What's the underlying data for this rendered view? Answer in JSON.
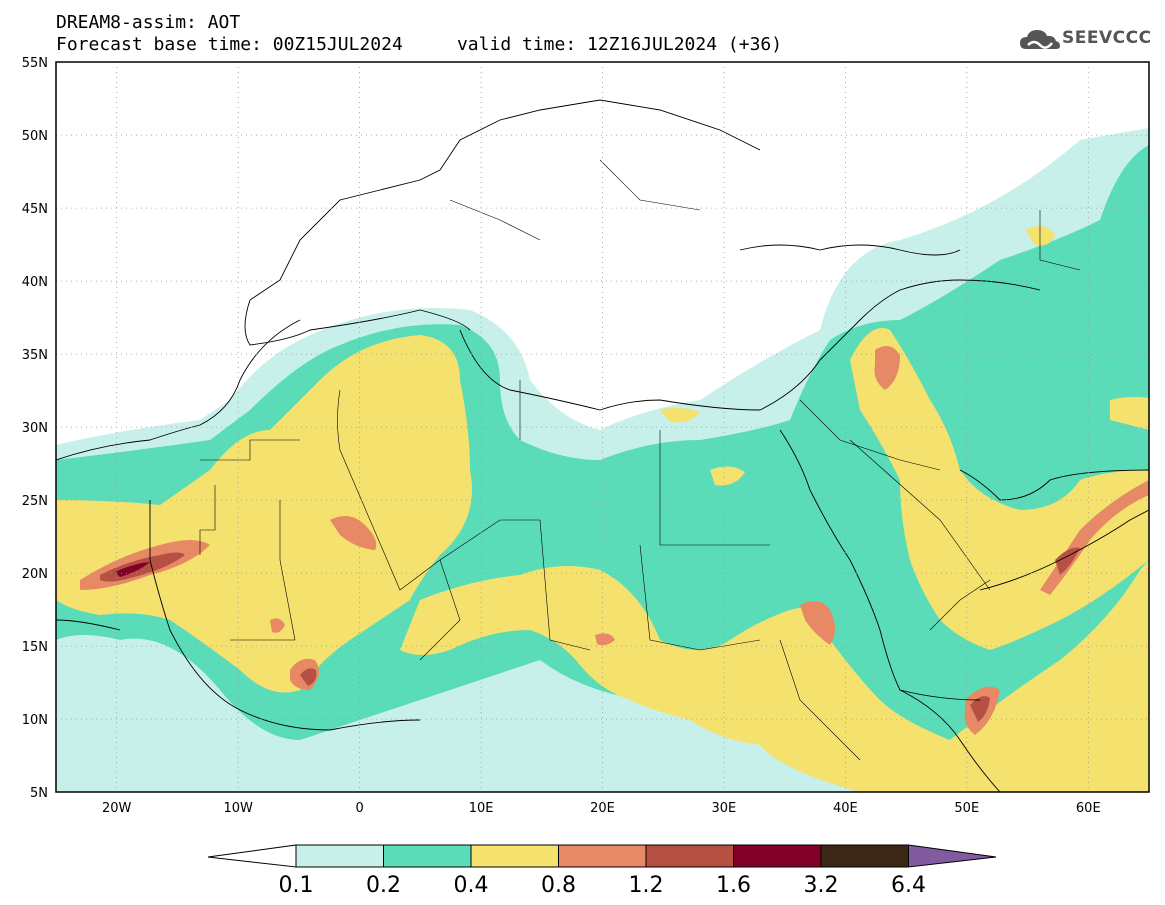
{
  "header": {
    "title_line1": "DREAM8-assim: AOT",
    "title_line2": "Forecast base time: 00Z15JUL2024     valid time: 12Z16JUL2024 (+36)"
  },
  "logo": {
    "text": "SEEVCCC",
    "icon": "cloud-icon"
  },
  "map": {
    "lat_labels": [
      "55N",
      "50N",
      "45N",
      "40N",
      "35N",
      "30N",
      "25N",
      "20N",
      "15N",
      "10N",
      "5N"
    ],
    "lon_labels": [
      "20W",
      "10W",
      "0",
      "10E",
      "20E",
      "30E",
      "40E",
      "50E",
      "60E"
    ],
    "lat_range": [
      5,
      55
    ],
    "lon_range": [
      -25,
      65
    ]
  },
  "colorbar": {
    "labels": [
      "0.1",
      "0.2",
      "0.4",
      "0.8",
      "1.2",
      "1.6",
      "3.2",
      "6.4"
    ],
    "colors": [
      "#c8f0ea",
      "#5adcb9",
      "#f5e16e",
      "#e78964",
      "#b65042",
      "#800027",
      "#3c2615",
      "#825aa0"
    ],
    "under_color": "#ffffff"
  }
}
